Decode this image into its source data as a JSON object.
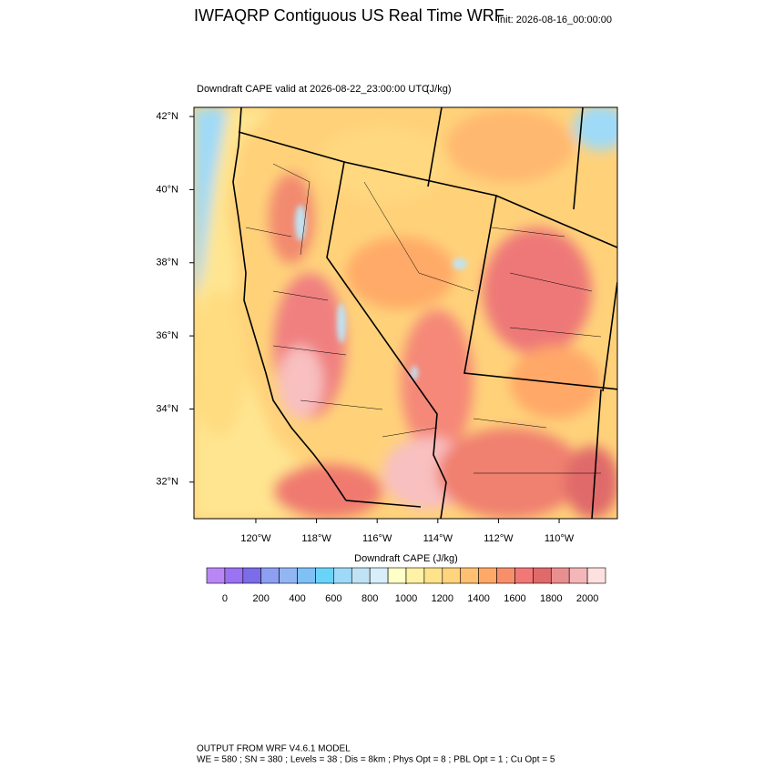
{
  "title": "IWFAQRP Contiguous US Real Time WRF",
  "init": "Init: 2026-08-16_00:00:00",
  "subtitle": "Downdraft CAPE valid at 2026-08-22_23:00:00 UTC",
  "units": "(J/kg)",
  "map": {
    "xlim": [
      -122.04,
      -108.08
    ],
    "ylim": [
      31.0,
      42.25
    ],
    "yticks": [
      {
        "value": 42,
        "label": "42°N"
      },
      {
        "value": 40,
        "label": "40°N"
      },
      {
        "value": 38,
        "label": "38°N"
      },
      {
        "value": 36,
        "label": "36°N"
      },
      {
        "value": 34,
        "label": "34°N"
      },
      {
        "value": 32,
        "label": "32°N"
      }
    ],
    "xticks": [
      {
        "value": -120,
        "label": "120°W"
      },
      {
        "value": -118,
        "label": "118°W"
      },
      {
        "value": -116,
        "label": "116°W"
      },
      {
        "value": -114,
        "label": "114°W"
      },
      {
        "value": -112,
        "label": "112°W"
      },
      {
        "value": -110,
        "label": "110°W"
      }
    ]
  },
  "colorbar": {
    "title": "Downdraft CAPE  (J/kg)",
    "lim": [
      -100,
      2100
    ],
    "colors": [
      "#b987f5",
      "#9b72f2",
      "#7b6cea",
      "#8c9ff0",
      "#92b6f2",
      "#80c0f4",
      "#6ad4f8",
      "#9ed9f8",
      "#bfe3f4",
      "#d8eef8",
      "#ffffc8",
      "#fff1a6",
      "#ffe38a",
      "#ffd47c",
      "#ffc072",
      "#ffa968",
      "#f98f6a",
      "#f27878",
      "#e06a6a",
      "#e88f90",
      "#f4b6b8",
      "#fde0e0"
    ],
    "ticks": [
      0,
      200,
      400,
      600,
      800,
      1000,
      1200,
      1400,
      1600,
      1800,
      2000
    ]
  },
  "footer": [
    "OUTPUT FROM WRF V4.6.1 MODEL",
    "WE = 580 ; SN = 380 ; Levels = 38 ; Dis = 8km ; Phys Opt = 8 ; PBL Opt = 1 ; Cu Opt = 5"
  ]
}
